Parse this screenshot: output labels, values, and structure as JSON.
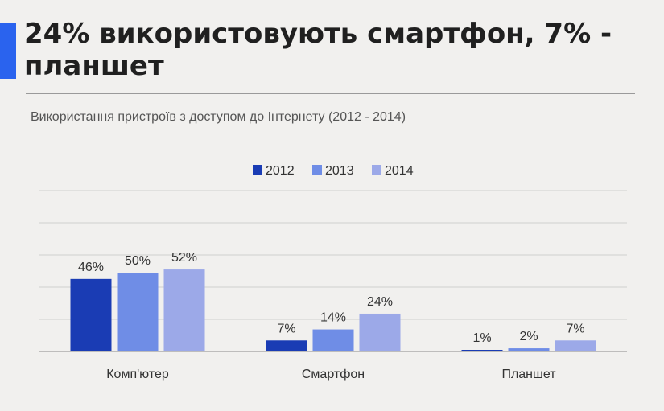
{
  "header": {
    "title": "24% використовують смартфон, 7% - планшет"
  },
  "chart_data": {
    "type": "bar",
    "title": "Використання пристроїв з доступом до Інтернету (2012 - 2014)",
    "categories": [
      "Комп'ютер",
      "Смартфон",
      "Планшет"
    ],
    "series": [
      {
        "name": "2012",
        "color": "#1a3cb4",
        "values": [
          46,
          7,
          1
        ],
        "labels": [
          "46%",
          "7%",
          "1%"
        ]
      },
      {
        "name": "2013",
        "color": "#6f8de6",
        "values": [
          50,
          14,
          2
        ],
        "labels": [
          "50%",
          "14%",
          "2%"
        ]
      },
      {
        "name": "2014",
        "color": "#9ca9e8",
        "values": [
          52,
          24,
          7
        ],
        "labels": [
          "52%",
          "24%",
          "7%"
        ]
      }
    ],
    "xlabel": "",
    "ylabel": "",
    "ylim": [
      0,
      100
    ],
    "grid": true,
    "legend": "top-center"
  }
}
